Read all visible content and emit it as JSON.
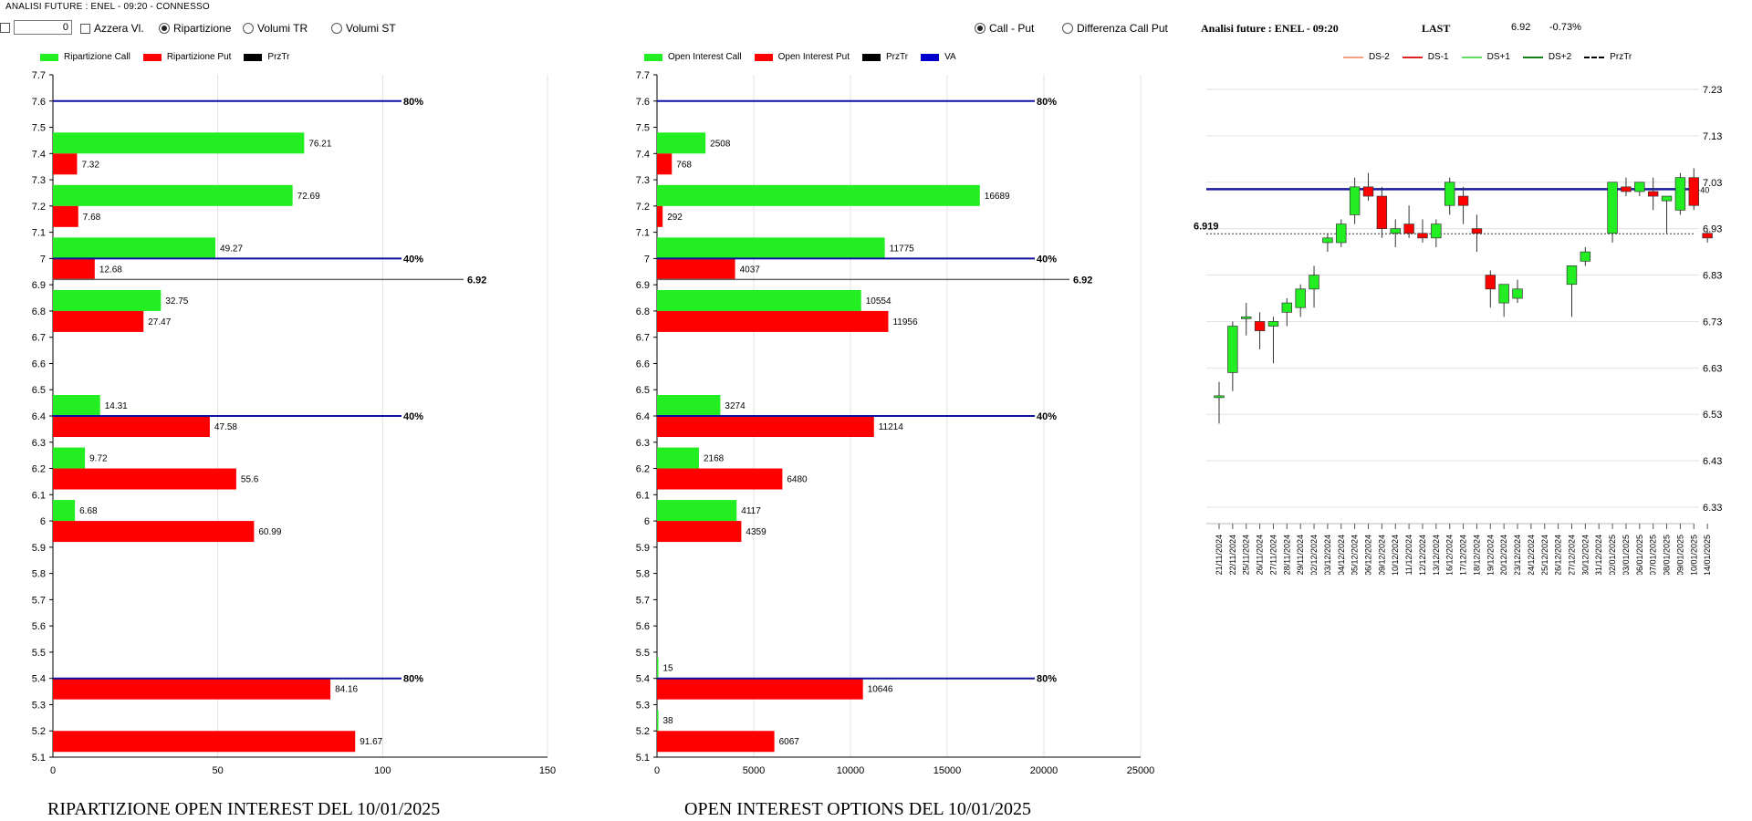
{
  "window": {
    "title": "ANALISI FUTURE : ENEL - 09:20 - CONNESSO"
  },
  "controls": {
    "number_value": "0",
    "reset_label": "Azzera Vl.",
    "radio_left": [
      "Ripartizione",
      "Volumi TR",
      "Volumi ST"
    ],
    "radio_left_selected": "Ripartizione",
    "radio_right": [
      "Call - Put",
      "Differenza Call Put"
    ],
    "radio_right_selected": "Call - Put"
  },
  "colors": {
    "call": "#22ee22",
    "put": "#ff0000",
    "prztr": "#000000",
    "va": "#0000cc",
    "ref_line": "#1010a0"
  },
  "legend1": [
    "Ripartizione Call",
    "Ripartizione Put",
    "PrzTr"
  ],
  "legend2": [
    "Open Interest Call",
    "Open Interest Put",
    "PrzTr",
    "VA"
  ],
  "legend3": [
    "DS-2",
    "DS-1",
    "DS+1",
    "DS+2",
    "PrzTr"
  ],
  "chart1_title": "RIPARTIZIONE OPEN INTEREST DEL 10/01/2025",
  "chart2_title": "OPEN INTEREST OPTIONS DEL 10/01/2025",
  "header3": {
    "name": "Analisi future : ENEL - 09:20",
    "last_label": "LAST",
    "last_value": "6.92",
    "change": "-0.73%"
  },
  "chart_data": [
    {
      "type": "bar",
      "orientation": "horizontal",
      "title": "RIPARTIZIONE OPEN INTEREST DEL 10/01/2025",
      "y_ticks": [
        "7.7",
        "7.6",
        "7.5",
        "7.4",
        "7.3",
        "7.2",
        "7.1",
        "7",
        "6.9",
        "6.8",
        "6.7",
        "6.6",
        "6.5",
        "6.4",
        "6.3",
        "6.2",
        "6.1",
        "6",
        "5.9",
        "5.8",
        "5.7",
        "5.6",
        "5.5",
        "5.4",
        "5.3",
        "5.2",
        "5.1"
      ],
      "xlim": [
        0,
        150
      ],
      "x_ticks": [
        "0",
        "50",
        "100",
        "150"
      ],
      "categories": [
        "7.4",
        "7.2",
        "7",
        "6.8",
        "6.4",
        "6.2",
        "6",
        "5.4",
        "5.2"
      ],
      "series": [
        {
          "name": "Ripartizione Call",
          "values": [
            76.21,
            72.69,
            49.27,
            32.75,
            14.31,
            9.72,
            6.68,
            null,
            null
          ],
          "labels": [
            "76.21",
            "72.69",
            "49.27",
            "32.75",
            "14.31",
            "9.72",
            "6.68",
            "",
            ""
          ]
        },
        {
          "name": "Ripartizione Put",
          "values": [
            7.32,
            7.68,
            12.68,
            27.47,
            47.58,
            55.6,
            60.99,
            84.16,
            91.67
          ],
          "labels": [
            "7.32",
            "7.68",
            "12.68",
            "27.47",
            "47.58",
            "55.6",
            "60.99",
            "84.16",
            "91.67"
          ]
        }
      ],
      "ref_lines": [
        {
          "y": 7.6,
          "label": "80%"
        },
        {
          "y": 7.0,
          "label": "40%"
        },
        {
          "y": 6.4,
          "label": "40%"
        },
        {
          "y": 5.4,
          "label": "80%"
        }
      ],
      "prztr": {
        "y": 6.92,
        "label": "6.92"
      }
    },
    {
      "type": "bar",
      "orientation": "horizontal",
      "title": "OPEN INTEREST OPTIONS DEL 10/01/2025",
      "y_ticks": [
        "7.7",
        "7.6",
        "7.5",
        "7.4",
        "7.3",
        "7.2",
        "7.1",
        "7",
        "6.9",
        "6.8",
        "6.7",
        "6.6",
        "6.5",
        "6.4",
        "6.3",
        "6.2",
        "6.1",
        "6",
        "5.9",
        "5.8",
        "5.7",
        "5.6",
        "5.5",
        "5.4",
        "5.3",
        "5.2",
        "5.1"
      ],
      "xlim": [
        0,
        25000
      ],
      "x_ticks": [
        "0",
        "5000",
        "10000",
        "15000",
        "20000",
        "25000"
      ],
      "categories": [
        "7.4",
        "7.2",
        "7",
        "6.8",
        "6.4",
        "6.2",
        "6",
        "5.4",
        "5.2"
      ],
      "series": [
        {
          "name": "Open Interest Call",
          "values": [
            2508,
            16689,
            11775,
            10554,
            3274,
            2168,
            4117,
            15,
            38
          ],
          "labels": [
            "2508",
            "16689",
            "11775",
            "10554",
            "3274",
            "2168",
            "4117",
            "15",
            "38"
          ]
        },
        {
          "name": "Open Interest Put",
          "values": [
            768,
            292,
            4037,
            11956,
            11214,
            6480,
            4359,
            10646,
            6067
          ],
          "labels": [
            "768",
            "292",
            "4037",
            "11956",
            "11214",
            "6480",
            "4359",
            "10646",
            "6067"
          ]
        }
      ],
      "ref_lines": [
        {
          "y": 7.6,
          "label": "80%"
        },
        {
          "y": 7.0,
          "label": "40%"
        },
        {
          "y": 6.4,
          "label": "40%"
        },
        {
          "y": 5.4,
          "label": "80%"
        }
      ],
      "prztr": {
        "y": 6.92,
        "label": "6.92"
      }
    },
    {
      "type": "candlestick",
      "ylim": [
        6.33,
        7.23
      ],
      "y_ticks": [
        "7.23",
        "7.13",
        "7.03",
        "6.93",
        "6.83",
        "6.73",
        "6.63",
        "6.53",
        "6.43",
        "6.33"
      ],
      "dates": [
        "21/11/2024",
        "22/11/2024",
        "25/11/2024",
        "26/11/2024",
        "27/11/2024",
        "28/11/2024",
        "29/11/2024",
        "02/12/2024",
        "03/12/2024",
        "04/12/2024",
        "05/12/2024",
        "06/12/2024",
        "09/12/2024",
        "10/12/2024",
        "11/12/2024",
        "12/12/2024",
        "13/12/2024",
        "16/12/2024",
        "17/12/2024",
        "18/12/2024",
        "19/12/2024",
        "20/12/2024",
        "23/12/2024",
        "24/12/2024",
        "25/12/2024",
        "26/12/2024",
        "27/12/2024",
        "30/12/2024",
        "31/12/2024",
        "02/01/2025",
        "03/01/2025",
        "06/01/2025",
        "07/01/2025",
        "08/01/2025",
        "09/01/2025",
        "10/01/2025",
        "14/01/2025"
      ],
      "ohlc": [
        [
          6.57,
          6.6,
          6.51,
          6.57
        ],
        [
          6.62,
          6.73,
          6.58,
          6.72
        ],
        [
          6.74,
          6.77,
          6.7,
          6.74
        ],
        [
          6.73,
          6.75,
          6.67,
          6.71
        ],
        [
          6.72,
          6.74,
          6.64,
          6.73
        ],
        [
          6.75,
          6.78,
          6.72,
          6.77
        ],
        [
          6.76,
          6.81,
          6.74,
          6.8
        ],
        [
          6.8,
          6.85,
          6.76,
          6.83
        ],
        [
          6.9,
          6.92,
          6.88,
          6.91
        ],
        [
          6.9,
          6.95,
          6.89,
          6.94
        ],
        [
          6.96,
          7.04,
          6.94,
          7.02
        ],
        [
          7.02,
          7.05,
          6.99,
          7.0
        ],
        [
          7.0,
          7.02,
          6.91,
          6.93
        ],
        [
          6.92,
          6.95,
          6.89,
          6.93
        ],
        [
          6.94,
          6.98,
          6.91,
          6.92
        ],
        [
          6.92,
          6.95,
          6.9,
          6.91
        ],
        [
          6.91,
          6.95,
          6.89,
          6.94
        ],
        [
          6.98,
          7.04,
          6.96,
          7.03
        ],
        [
          7.0,
          7.02,
          6.94,
          6.98
        ],
        [
          6.93,
          6.96,
          6.88,
          6.92
        ],
        [
          6.83,
          6.84,
          6.76,
          6.8
        ],
        [
          6.77,
          6.81,
          6.74,
          6.81
        ],
        [
          6.78,
          6.82,
          6.77,
          6.8
        ],
        [
          null,
          null,
          null,
          null
        ],
        [
          null,
          null,
          null,
          null
        ],
        [
          null,
          null,
          null,
          null
        ],
        [
          6.81,
          6.85,
          6.74,
          6.85
        ],
        [
          6.86,
          6.89,
          6.85,
          6.88
        ],
        [
          null,
          null,
          null,
          null
        ],
        [
          6.92,
          7.03,
          6.9,
          7.03
        ],
        [
          7.02,
          7.04,
          7.0,
          7.01
        ],
        [
          7.01,
          7.03,
          7.0,
          7.03
        ],
        [
          7.01,
          7.04,
          6.97,
          7.0
        ],
        [
          6.99,
          7.0,
          6.92,
          7.0
        ],
        [
          6.97,
          7.05,
          6.96,
          7.04
        ],
        [
          7.04,
          7.06,
          6.97,
          6.98
        ],
        [
          6.92,
          6.93,
          6.9,
          6.91
        ]
      ],
      "blue_line": {
        "y": 7.015,
        "label": "+40"
      },
      "prztr_line": {
        "y": 6.919,
        "label": "6.919"
      }
    }
  ]
}
